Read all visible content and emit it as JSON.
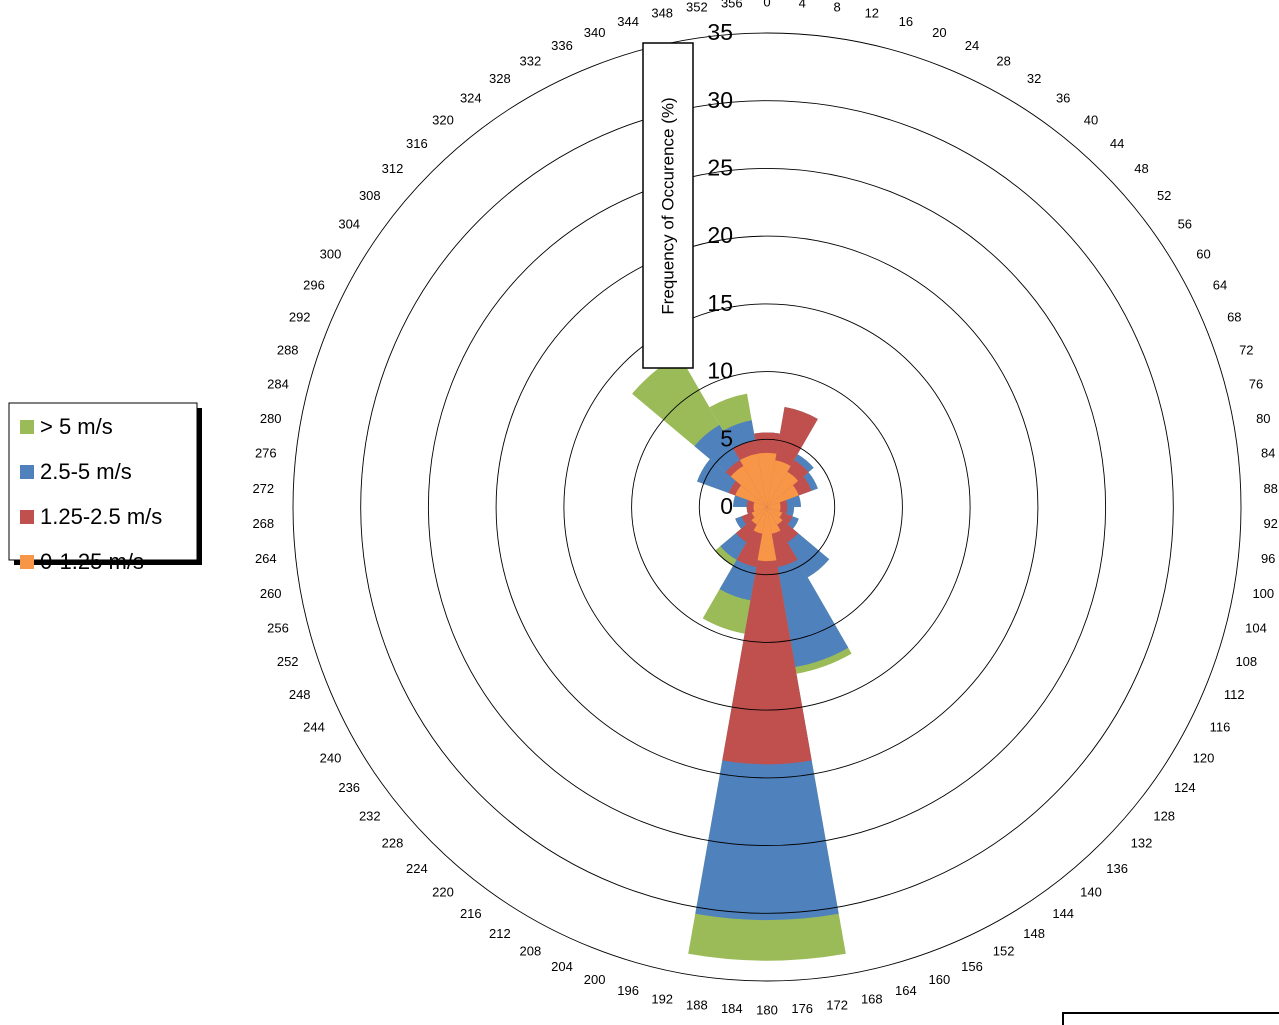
{
  "chart_data": {
    "type": "bar",
    "polar": true,
    "direction_labels": [
      "0",
      "4",
      "8",
      "12",
      "16",
      "20",
      "24",
      "28",
      "32",
      "36",
      "40",
      "44",
      "48",
      "52",
      "56",
      "60",
      "64",
      "68",
      "72",
      "76",
      "80",
      "84",
      "88",
      "92",
      "96",
      "100",
      "104",
      "108",
      "112",
      "116",
      "120",
      "124",
      "128",
      "132",
      "136",
      "140",
      "144",
      "148",
      "152",
      "156",
      "160",
      "164",
      "168",
      "172",
      "176",
      "180",
      "184",
      "188",
      "192",
      "196",
      "200",
      "204",
      "208",
      "212",
      "216",
      "220",
      "224",
      "228",
      "232",
      "236",
      "240",
      "244",
      "248",
      "252",
      "256",
      "260",
      "264",
      "268",
      "272",
      "276",
      "280",
      "284",
      "288",
      "292",
      "296",
      "300",
      "304",
      "308",
      "312",
      "316",
      "320",
      "324",
      "328",
      "332",
      "336",
      "340",
      "344",
      "348",
      "352",
      "356"
    ],
    "sector_width_deg": 20,
    "sector_centers_deg": [
      0,
      20,
      40,
      60,
      80,
      100,
      120,
      140,
      160,
      180,
      200,
      220,
      240,
      260,
      280,
      300,
      320,
      340
    ],
    "series": [
      {
        "name": "0-1.25 m/s",
        "color": "#f79646",
        "values": [
          4.0,
          3.5,
          3.0,
          2.5,
          1.0,
          1.0,
          1.2,
          1.5,
          2.0,
          4.0,
          2.0,
          1.5,
          1.2,
          1.0,
          1.0,
          2.5,
          3.5,
          4.0
        ]
      },
      {
        "name": "1.25-2.5 m/s",
        "color": "#c0504d",
        "values": [
          5.5,
          7.5,
          4.0,
          3.5,
          1.5,
          1.5,
          2.0,
          3.0,
          4.5,
          19.0,
          4.5,
          3.0,
          2.0,
          1.5,
          1.5,
          3.0,
          4.0,
          5.0
        ]
      },
      {
        "name": "2.5-5 m/s",
        "color": "#4f81bd",
        "values": [
          5.5,
          7.5,
          4.5,
          4.0,
          2.5,
          2.0,
          2.5,
          6.0,
          12.0,
          30.5,
          7.0,
          4.5,
          2.5,
          1.5,
          2.5,
          5.5,
          7.0,
          6.5
        ]
      },
      {
        "name": "> 5 m/s",
        "color": "#9bbb59",
        "values": [
          5.5,
          7.5,
          4.5,
          4.0,
          2.5,
          2.0,
          2.5,
          6.0,
          12.5,
          33.5,
          9.5,
          5.0,
          2.5,
          1.5,
          2.5,
          5.5,
          13.0,
          8.5
        ]
      }
    ],
    "legend_order": [
      "> 5 m/s",
      "2.5-5 m/s",
      "1.25-2.5 m/s",
      "0-1.25 m/s"
    ],
    "radial_axis": {
      "label": "Frequency of Occurence (%)",
      "ticks": [
        "0",
        "5",
        "10",
        "15",
        "20",
        "25",
        "30",
        "35"
      ],
      "range": [
        0,
        35
      ]
    },
    "grid": true,
    "legend_position": "left"
  }
}
